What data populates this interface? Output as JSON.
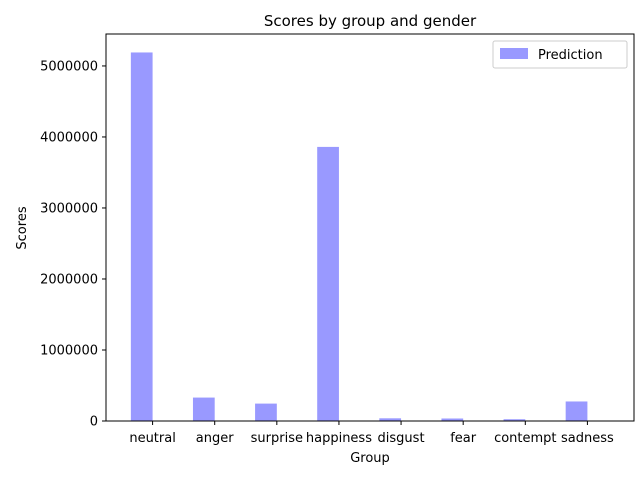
{
  "chart_data": {
    "type": "bar",
    "title": "Scores by group and gender",
    "xlabel": "Group",
    "ylabel": "Scores",
    "categories": [
      "neutral",
      "anger",
      "surprise",
      "happiness",
      "disgust",
      "fear",
      "contempt",
      "sadness"
    ],
    "series": [
      {
        "name": "Prediction",
        "color": "#9999ff",
        "values": [
          5190000,
          330000,
          245000,
          3860000,
          38000,
          35000,
          25000,
          275000
        ]
      }
    ],
    "ylim": [
      0,
      5450000
    ],
    "yticks": [
      0,
      1000000,
      2000000,
      3000000,
      4000000,
      5000000
    ],
    "ytick_labels": [
      "0",
      "1000000",
      "2000000",
      "3000000",
      "4000000",
      "5000000"
    ],
    "grid": false,
    "legend_position": "top-right"
  }
}
